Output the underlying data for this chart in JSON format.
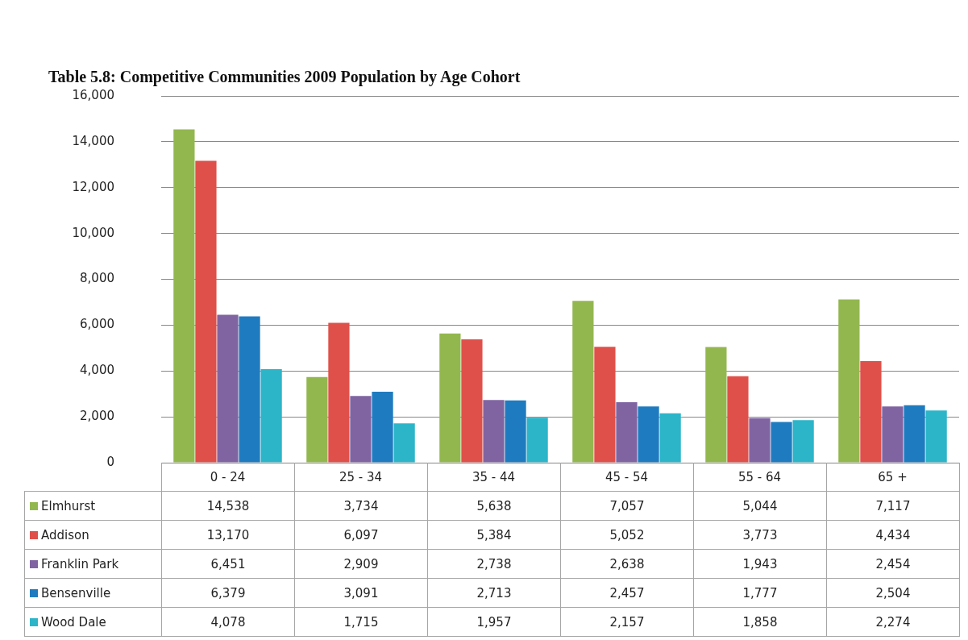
{
  "chart_data": {
    "type": "bar",
    "title": "Table 5.8: Competitive Communities 2009 Population by Age Cohort",
    "categories": [
      "0 - 24",
      "25 - 34",
      "35 - 44",
      "45 - 54",
      "55 - 64",
      "65 +"
    ],
    "series": [
      {
        "name": "Elmhurst",
        "color": "#93b74f",
        "values": [
          14538,
          3734,
          5638,
          7057,
          5044,
          7117
        ],
        "value_labels": [
          "14,538",
          "3,734",
          "5,638",
          "7,057",
          "5,044",
          "7,117"
        ]
      },
      {
        "name": "Addison",
        "color": "#e0504a",
        "values": [
          13170,
          6097,
          5384,
          5052,
          3773,
          4434
        ],
        "value_labels": [
          "13,170",
          "6,097",
          "5,384",
          "5,052",
          "3,773",
          "4,434"
        ]
      },
      {
        "name": "Franklin Park",
        "color": "#8064a2",
        "values": [
          6451,
          2909,
          2738,
          2638,
          1943,
          2454
        ],
        "value_labels": [
          "6,451",
          "2,909",
          "2,738",
          "2,638",
          "1,943",
          "2,454"
        ]
      },
      {
        "name": "Bensenville",
        "color": "#1f7bbf",
        "values": [
          6379,
          3091,
          2713,
          2457,
          1777,
          2504
        ],
        "value_labels": [
          "6,379",
          "3,091",
          "2,713",
          "2,457",
          "1,777",
          "2,504"
        ]
      },
      {
        "name": "Wood Dale",
        "color": "#2cb5c9",
        "values": [
          4078,
          1715,
          1957,
          2157,
          1858,
          2274
        ],
        "value_labels": [
          "4,078",
          "1,715",
          "1,957",
          "2,157",
          "1,858",
          "2,274"
        ]
      }
    ],
    "ylim": [
      0,
      16000
    ],
    "yticks": [
      0,
      {
        "value": 2000,
        "label": "2,000"
      },
      {
        "value": 4000,
        "label": "4,000"
      },
      {
        "value": 6000,
        "label": "6,000"
      },
      {
        "value": 8000,
        "label": "8,000"
      },
      {
        "value": 10000,
        "label": "10,000"
      },
      {
        "value": 12000,
        "label": "12,000"
      },
      {
        "value": 14000,
        "label": "14,000"
      },
      {
        "value": 16000,
        "label": "16,000"
      }
    ],
    "grid": "y",
    "legend": "bottom"
  }
}
